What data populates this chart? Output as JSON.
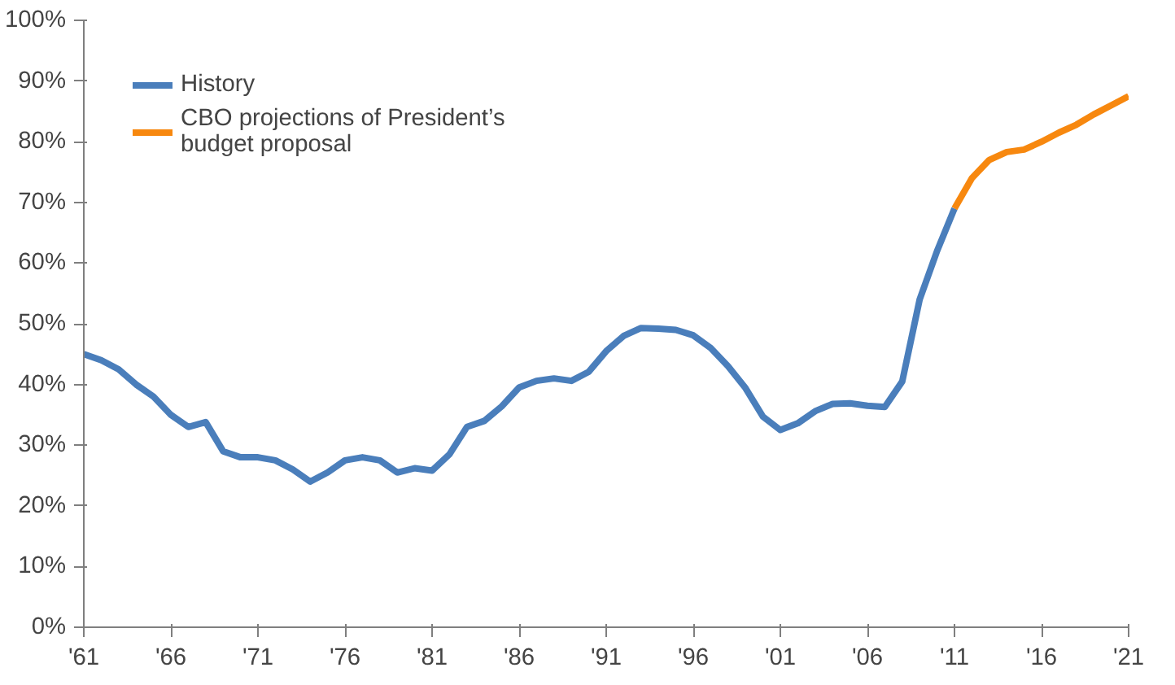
{
  "chart_data": {
    "type": "line",
    "series": [
      {
        "name": "History",
        "color": "#4a7ebb",
        "x": [
          1961,
          1962,
          1963,
          1964,
          1965,
          1966,
          1967,
          1968,
          1969,
          1970,
          1971,
          1972,
          1973,
          1974,
          1975,
          1976,
          1977,
          1978,
          1979,
          1980,
          1981,
          1982,
          1983,
          1984,
          1985,
          1986,
          1987,
          1988,
          1989,
          1990,
          1991,
          1992,
          1993,
          1994,
          1995,
          1996,
          1997,
          1998,
          1999,
          2000,
          2001,
          2002,
          2003,
          2004,
          2005,
          2006,
          2007,
          2008,
          2009,
          2010,
          2011
        ],
        "values": [
          45,
          44,
          42.5,
          40,
          38,
          35,
          33,
          33.8,
          29,
          28,
          28,
          27.5,
          26,
          24,
          25.5,
          27.5,
          28,
          27.5,
          25.5,
          26.2,
          25.8,
          28.5,
          33,
          34,
          36.4,
          39.5,
          40.6,
          41,
          40.6,
          42.1,
          45.5,
          48,
          49.3,
          49.2,
          49,
          48.1,
          46,
          43,
          39.4,
          34.7,
          32.5,
          33.6,
          35.6,
          36.8,
          36.9,
          36.5,
          36.3,
          40.5,
          54,
          62,
          69
        ]
      },
      {
        "name": "CBO projections of President’s budget proposal",
        "color": "#f7880f",
        "x": [
          2011,
          2012,
          2013,
          2014,
          2015,
          2016,
          2017,
          2018,
          2019,
          2020,
          2021
        ],
        "values": [
          69,
          74,
          77,
          78.3,
          78.7,
          80,
          81.5,
          82.8,
          84.5,
          86,
          87.5
        ]
      }
    ],
    "xlim": [
      1961,
      2021
    ],
    "xticks": [
      {
        "value": 1961,
        "label": "'61"
      },
      {
        "value": 1966,
        "label": "'66"
      },
      {
        "value": 1971,
        "label": "'71"
      },
      {
        "value": 1976,
        "label": "'76"
      },
      {
        "value": 1981,
        "label": "'81"
      },
      {
        "value": 1986,
        "label": "'86"
      },
      {
        "value": 1991,
        "label": "'91"
      },
      {
        "value": 1996,
        "label": "'96"
      },
      {
        "value": 2001,
        "label": "'01"
      },
      {
        "value": 2006,
        "label": "'06"
      },
      {
        "value": 2011,
        "label": "'11"
      },
      {
        "value": 2016,
        "label": "'16"
      },
      {
        "value": 2021,
        "label": "'21"
      }
    ],
    "ylim": [
      0,
      100
    ],
    "yticks": [
      {
        "value": 0,
        "label": "0%"
      },
      {
        "value": 10,
        "label": "10%"
      },
      {
        "value": 20,
        "label": "20%"
      },
      {
        "value": 30,
        "label": "30%"
      },
      {
        "value": 40,
        "label": "40%"
      },
      {
        "value": 50,
        "label": "50%"
      },
      {
        "value": 60,
        "label": "60%"
      },
      {
        "value": 70,
        "label": "70%"
      },
      {
        "value": 80,
        "label": "80%"
      },
      {
        "value": 90,
        "label": "90%"
      },
      {
        "value": 100,
        "label": "100%"
      }
    ],
    "grid": false,
    "legend": "top left",
    "line_style": "solid"
  }
}
